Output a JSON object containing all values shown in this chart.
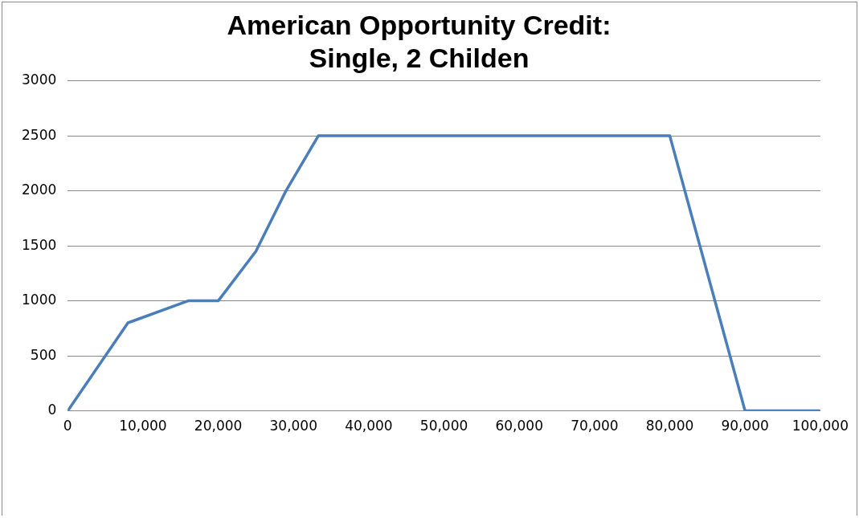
{
  "chart_data": {
    "type": "line",
    "title": "American Opportunity Credit:\nSingle, 2 Childen",
    "x": [
      0,
      8000,
      16000,
      20000,
      25000,
      29000,
      33300,
      80000,
      90000,
      100000
    ],
    "series": [
      {
        "color": "#4a7ebb",
        "values": [
          0,
          800,
          1000,
          1000,
          1450,
          2000,
          2500,
          2500,
          0,
          0
        ]
      }
    ],
    "xlim": [
      0,
      100000
    ],
    "xticks": [
      {
        "value": 0,
        "label": "0"
      },
      {
        "value": 10000,
        "label": "10,000"
      },
      {
        "value": 20000,
        "label": "20,000"
      },
      {
        "value": 30000,
        "label": "30,000"
      },
      {
        "value": 40000,
        "label": "40,000"
      },
      {
        "value": 50000,
        "label": "50,000"
      },
      {
        "value": 60000,
        "label": "60,000"
      },
      {
        "value": 70000,
        "label": "70,000"
      },
      {
        "value": 80000,
        "label": "80,000"
      },
      {
        "value": 90000,
        "label": "90,000"
      },
      {
        "value": 100000,
        "label": "100,000"
      }
    ],
    "ylim": [
      0,
      3000
    ],
    "yticks": [
      0,
      500,
      1000,
      1500,
      2000,
      2500,
      3000
    ],
    "grid": "y",
    "legend": false,
    "marker": "none",
    "line_style": "solid"
  }
}
